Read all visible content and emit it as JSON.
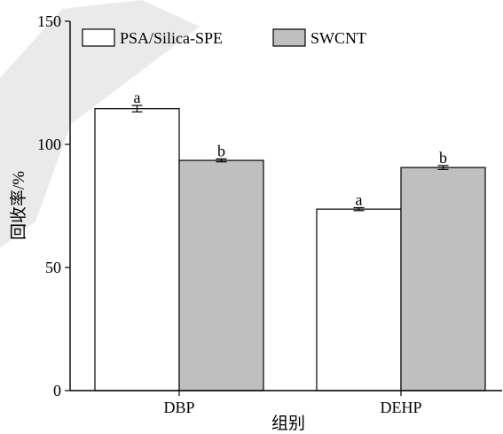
{
  "chart_data": {
    "type": "bar",
    "categories": [
      "DBP",
      "DEHP"
    ],
    "series": [
      {
        "name": "PSA/Silica-SPE",
        "color": "#ffffff",
        "values": [
          114.5,
          73.7
        ],
        "errors": [
          1.3,
          0.6
        ],
        "labels": [
          "a",
          "a"
        ]
      },
      {
        "name": "SWCNT",
        "color": "#bfbfbf",
        "values": [
          93.5,
          90.6
        ],
        "errors": [
          0.6,
          0.8
        ],
        "labels": [
          "b",
          "b"
        ]
      }
    ],
    "ylim": [
      0,
      150
    ],
    "yticks": [
      0,
      50,
      100,
      150
    ],
    "xlabel": "组别",
    "ylabel": "回收率/%",
    "legend_position": "top-left",
    "grid": false
  }
}
